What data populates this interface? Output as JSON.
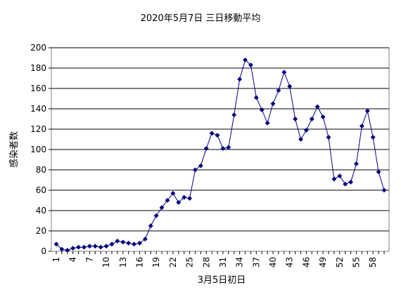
{
  "chart_data": {
    "type": "line",
    "title": "2020年5月7日 三日移動平均",
    "xlabel": "3月5日初日",
    "ylabel": "感染者数",
    "ylim": [
      0,
      200
    ],
    "yticks": [
      0,
      20,
      40,
      60,
      80,
      100,
      120,
      140,
      160,
      180,
      200
    ],
    "xlim": [
      1,
      60
    ],
    "xticks": [
      1,
      4,
      7,
      10,
      13,
      16,
      19,
      22,
      25,
      28,
      31,
      34,
      37,
      40,
      43,
      46,
      49,
      52,
      55,
      58
    ],
    "grid": "horizontal",
    "legend": "none",
    "series": [
      {
        "color": "#000080",
        "marker": "diamond",
        "x": [
          1,
          2,
          3,
          4,
          5,
          6,
          7,
          8,
          9,
          10,
          11,
          12,
          13,
          14,
          15,
          16,
          17,
          18,
          19,
          20,
          21,
          22,
          23,
          24,
          25,
          26,
          27,
          28,
          29,
          30,
          31,
          32,
          33,
          34,
          35,
          36,
          37,
          38,
          39,
          40,
          41,
          42,
          43,
          44,
          45,
          46,
          47,
          48,
          49,
          50,
          51,
          52,
          53,
          54,
          55,
          56,
          57,
          58,
          59,
          60
        ],
        "values": [
          7,
          2,
          1,
          3,
          4,
          4,
          5,
          5,
          4,
          5,
          7,
          10,
          9,
          8,
          7,
          8,
          12,
          25,
          35,
          43,
          50,
          57,
          48,
          53,
          52,
          80,
          84,
          101,
          116,
          114,
          101,
          102,
          134,
          169,
          188,
          183,
          151,
          139,
          126,
          145,
          158,
          176,
          162,
          130,
          110,
          119,
          130,
          142,
          132,
          112,
          71,
          74,
          66,
          68,
          86,
          123,
          138,
          112,
          78,
          60
        ]
      }
    ]
  },
  "style": {
    "background": "#ffffff",
    "plot_background": "#ffffff",
    "grid_color": "#000000",
    "line_color": "#000080",
    "axis_color": "#808080"
  }
}
